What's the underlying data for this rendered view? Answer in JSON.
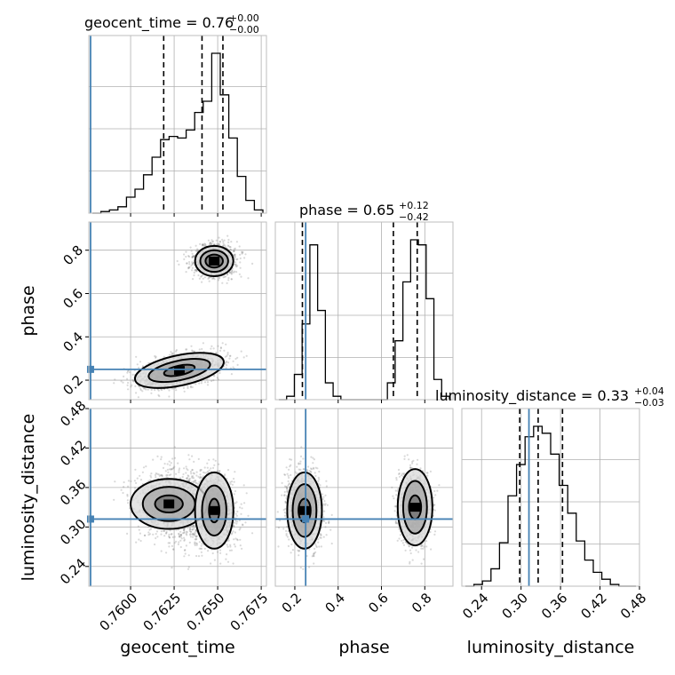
{
  "chart_data": {
    "type": "corner",
    "parameters": [
      "geocent_time",
      "phase",
      "luminosity_distance"
    ],
    "titles": [
      {
        "param": "geocent_time",
        "text": "geocent_time = 0.76",
        "sup": "+0.00",
        "sub": "−0.00"
      },
      {
        "param": "phase",
        "text": "phase = 0.65",
        "sup": "+0.12",
        "sub": "−0.42"
      },
      {
        "param": "luminosity_distance",
        "text": "luminosity_distance = 0.33",
        "sup": "+0.04",
        "sub": "−0.03"
      }
    ],
    "ranges": {
      "geocent_time": [
        0.7576,
        0.7678
      ],
      "phase": [
        0.11,
        0.93
      ],
      "luminosity_distance": [
        0.21,
        0.48
      ]
    },
    "ticks": {
      "geocent_time": [
        0.76,
        0.7625,
        0.765,
        0.7675
      ],
      "phase": [
        0.2,
        0.4,
        0.6,
        0.8
      ],
      "luminosity_distance": [
        0.24,
        0.3,
        0.36,
        0.42,
        0.48
      ]
    },
    "tick_labels": {
      "geocent_time": [
        "0.7600",
        "0.7625",
        "0.7650",
        "0.7675"
      ],
      "phase": [
        "0.2",
        "0.4",
        "0.6",
        "0.8"
      ],
      "luminosity_distance": [
        "0.24",
        "0.30",
        "0.36",
        "0.42",
        "0.48"
      ]
    },
    "truths": {
      "geocent_time": 0.7577,
      "phase": 0.25,
      "luminosity_distance": 0.312
    },
    "quantiles": {
      "geocent_time": [
        0.7619,
        0.7641,
        0.7653
      ],
      "phase": [
        0.235,
        0.655,
        0.765
      ],
      "luminosity_distance": [
        0.298,
        0.326,
        0.363
      ]
    },
    "histograms": {
      "geocent_time": [
        0,
        1,
        2,
        4,
        10,
        15,
        24,
        35,
        46,
        48,
        47,
        52,
        63,
        70,
        100,
        74,
        47,
        23,
        8,
        2
      ],
      "phase": [
        0,
        2,
        15,
        45,
        92,
        53,
        10,
        2,
        0,
        0,
        0,
        0,
        0,
        0,
        10,
        35,
        70,
        95,
        92,
        60,
        12,
        2
      ],
      "luminosity_distance": [
        0,
        1,
        3,
        10,
        25,
        52,
        70,
        86,
        92,
        88,
        76,
        58,
        42,
        26,
        15,
        8,
        4,
        1,
        0,
        0
      ]
    },
    "grid": true
  }
}
